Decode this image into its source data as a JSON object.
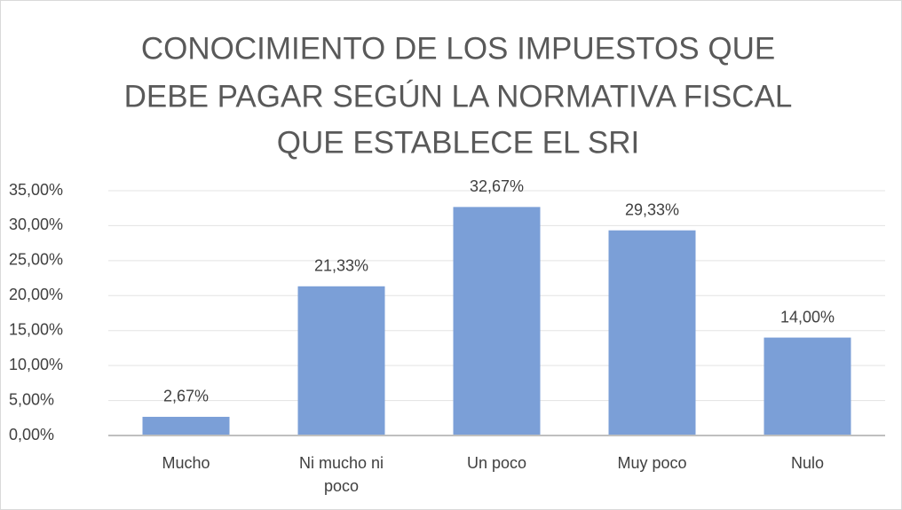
{
  "chart_data": {
    "type": "bar",
    "title": [
      "CONOCIMIENTO DE LOS IMPUESTOS QUE",
      "DEBE PAGAR SEGÚN LA NORMATIVA FISCAL",
      "QUE ESTABLECE EL SRI"
    ],
    "categories": [
      "Mucho",
      "Ni mucho ni poco",
      "Un poco",
      "Muy poco",
      "Nulo"
    ],
    "values": [
      2.67,
      21.33,
      32.67,
      29.33,
      14.0
    ],
    "value_labels": [
      "2,67%",
      "21,33%",
      "32,67%",
      "29,33%",
      "14,00%"
    ],
    "color": "#7b9fd7",
    "ylim": [
      0,
      35
    ],
    "yticks": [
      {
        "value": 0,
        "label": "0,00%"
      },
      {
        "value": 5,
        "label": "5,00%"
      },
      {
        "value": 10,
        "label": "10,00%"
      },
      {
        "value": 15,
        "label": "15,00%"
      },
      {
        "value": 20,
        "label": "20,00%"
      },
      {
        "value": 25,
        "label": "25,00%"
      },
      {
        "value": 30,
        "label": "30,00%"
      },
      {
        "value": 35,
        "label": "35,00%"
      }
    ],
    "grid": true
  }
}
